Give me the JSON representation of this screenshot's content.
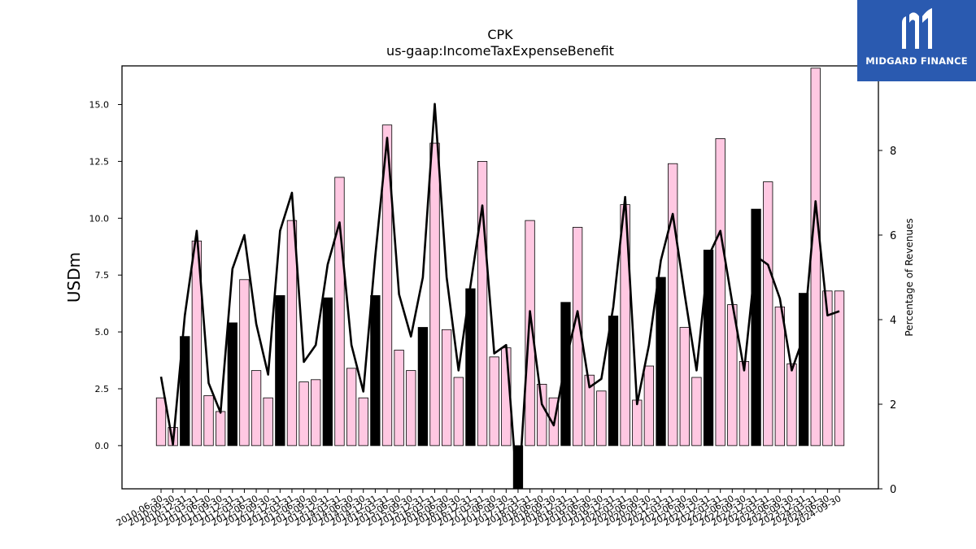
{
  "logo": {
    "text": "MIDGARD FINANCE"
  },
  "colors": {
    "pink": "#ffc8e2",
    "black": "#000000",
    "brand": "#2a5ab0"
  },
  "chart_data": {
    "type": "bar",
    "title": "CPK",
    "subtitle": "us-gaap:IncomeTaxExpenseBenefit",
    "ylabel": "USDm",
    "y2label": "Percentage of Revenues",
    "ylim": [
      -1.9,
      16.7
    ],
    "y2lim": [
      0,
      10.0
    ],
    "yticks": [
      "0.0",
      "2.5",
      "5.0",
      "7.5",
      "10.0",
      "12.5",
      "15.0"
    ],
    "y2ticks": [
      "0",
      "2",
      "4",
      "6",
      "8"
    ],
    "categories": [
      "2010-06-30",
      "2010-09-30",
      "2010-12-31",
      "2011-03-31",
      "2011-06-30",
      "2011-09-30",
      "2011-12-31",
      "2012-03-31",
      "2012-06-30",
      "2012-09-30",
      "2012-12-31",
      "2013-03-31",
      "2013-06-30",
      "2013-09-30",
      "2013-12-31",
      "2014-03-31",
      "2014-06-30",
      "2014-09-30",
      "2014-12-31",
      "2015-03-31",
      "2015-06-30",
      "2015-09-30",
      "2015-12-31",
      "2016-03-31",
      "2016-06-30",
      "2016-09-30",
      "2016-12-31",
      "2017-03-31",
      "2017-06-30",
      "2017-09-30",
      "2017-12-31",
      "2018-03-31",
      "2018-06-30",
      "2018-09-30",
      "2018-12-31",
      "2019-03-31",
      "2019-06-30",
      "2019-09-30",
      "2019-12-31",
      "2020-03-31",
      "2020-06-30",
      "2020-09-30",
      "2020-12-31",
      "2021-03-31",
      "2021-06-30",
      "2021-09-30",
      "2021-12-31",
      "2022-03-31",
      "2022-06-30",
      "2022-09-30",
      "2022-12-31",
      "2023-03-31",
      "2023-06-30",
      "2023-09-30",
      "2023-12-31",
      "2024-03-31",
      "2024-06-30",
      "2024-09-30"
    ],
    "x_tick_labels": [
      "2010-06-30",
      "2010-09-30",
      "2010-12-31",
      "2011-03-31",
      "2011-06-30",
      "2011-09-30",
      "2011-12-31",
      "2012-03-31",
      "2012-06-30",
      "2012-09-30",
      "2012-12-31",
      "2013-03-31",
      "2013-06-30",
      "2013-09-30",
      "2013-12-31",
      "2014-03-31",
      "2014-06-30",
      "2014-09-30",
      "2014-12-31",
      "2015-03-31",
      "2015-06-30",
      "2015-09-30",
      "2015-12-31",
      "2016-03-31",
      "2016-06-30",
      "2016-09-30",
      "2016-12-31",
      "2017-03-31",
      "2017-06-30",
      "2017-09-30",
      "2017-12-31",
      "2018-03-31",
      "2018-06-30",
      "2018-09-30",
      "2018-12-31",
      "2019-03-31",
      "2019-06-30",
      "2019-09-30",
      "2019-12-31",
      "2020-03-31",
      "2020-06-30",
      "2020-09-30",
      "2020-12-31",
      "2021-03-31",
      "2021-06-30",
      "2021-09-30",
      "2021-12-31",
      "2022-03-31",
      "2022-06-30",
      "2022-09-30",
      "2022-12-31",
      "2023-03-31",
      "2023-06-30",
      "2023-09-30",
      "2023-12-31",
      "2024-03-31",
      "2024-06-30",
      "2024-09-30"
    ],
    "series": [
      {
        "type": "bar",
        "axis": "left",
        "values": [
          2.1,
          0.8,
          4.8,
          9.0,
          2.2,
          1.5,
          5.4,
          7.3,
          3.3,
          2.1,
          6.6,
          9.9,
          2.8,
          2.9,
          6.5,
          11.8,
          3.4,
          2.1,
          6.6,
          14.1,
          4.2,
          3.3,
          5.2,
          13.3,
          5.1,
          3.0,
          6.9,
          12.5,
          3.9,
          4.3,
          -1.9,
          9.9,
          2.7,
          2.1,
          6.3,
          9.6,
          3.1,
          2.4,
          5.7,
          10.6,
          2.0,
          3.5,
          7.4,
          12.4,
          5.2,
          3.0,
          8.6,
          13.5,
          6.2,
          3.7,
          10.4,
          11.6,
          6.1,
          3.6,
          6.7,
          16.6,
          6.8,
          6.8
        ],
        "colors": [
          "pink",
          "pink",
          "black",
          "pink",
          "pink",
          "pink",
          "black",
          "pink",
          "pink",
          "pink",
          "black",
          "pink",
          "pink",
          "pink",
          "black",
          "pink",
          "pink",
          "pink",
          "black",
          "pink",
          "pink",
          "pink",
          "black",
          "pink",
          "pink",
          "pink",
          "black",
          "pink",
          "pink",
          "pink",
          "black",
          "pink",
          "pink",
          "pink",
          "black",
          "pink",
          "pink",
          "pink",
          "black",
          "pink",
          "pink",
          "pink",
          "black",
          "pink",
          "pink",
          "pink",
          "black",
          "pink",
          "pink",
          "pink",
          "black",
          "pink",
          "pink",
          "pink",
          "black",
          "pink",
          "pink",
          "pink"
        ]
      },
      {
        "type": "line",
        "axis": "right",
        "values": [
          2.65,
          1.05,
          4.1,
          6.1,
          2.5,
          1.8,
          5.2,
          6.0,
          3.9,
          2.7,
          6.1,
          7.0,
          3.0,
          3.4,
          5.3,
          6.3,
          3.4,
          2.3,
          5.5,
          8.3,
          4.6,
          3.6,
          5.0,
          9.1,
          5.0,
          2.8,
          4.8,
          6.7,
          3.2,
          3.4,
          -0.3,
          4.2,
          2.0,
          1.5,
          3.0,
          4.2,
          2.4,
          2.6,
          4.3,
          6.9,
          2.0,
          3.4,
          5.4,
          6.5,
          4.6,
          2.8,
          5.5,
          6.1,
          4.4,
          2.8,
          5.5,
          5.3,
          4.5,
          2.8,
          3.6,
          6.8,
          4.1,
          4.2
        ]
      }
    ]
  }
}
